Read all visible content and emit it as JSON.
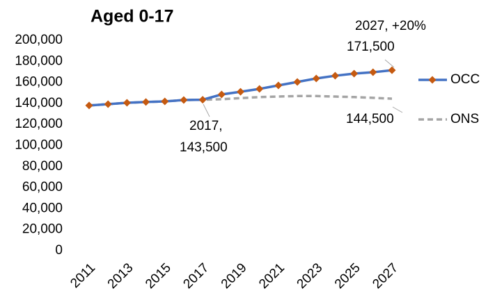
{
  "chart_data": {
    "type": "line",
    "title": "Aged 0-17",
    "x": [
      2011,
      2012,
      2013,
      2014,
      2015,
      2016,
      2017,
      2018,
      2019,
      2020,
      2021,
      2022,
      2023,
      2024,
      2025,
      2026,
      2027
    ],
    "xlim": [
      2011,
      2027
    ],
    "xticks": [
      2011,
      2013,
      2015,
      2017,
      2019,
      2021,
      2023,
      2025,
      2027
    ],
    "ylim": [
      0,
      200000
    ],
    "yticks": [
      0,
      {
        "value": 20000,
        "label": "20,000"
      },
      {
        "value": 40000,
        "label": "40,000"
      },
      {
        "value": 60000,
        "label": "60,000"
      },
      {
        "value": 80000,
        "label": "80,000"
      },
      {
        "value": 100000,
        "label": "100,000"
      },
      {
        "value": 120000,
        "label": "120,000"
      },
      {
        "value": 140000,
        "label": "140,000"
      },
      {
        "value": 160000,
        "label": "160,000"
      },
      {
        "value": 180000,
        "label": "180,000"
      },
      {
        "value": 200000,
        "label": "200,000"
      }
    ],
    "grid": false,
    "legend": "right",
    "series": [
      {
        "name": "ONS",
        "color": "#a5a5a5",
        "dash": true,
        "values": [
          138000,
          139300,
          140600,
          141300,
          141900,
          143200,
          143500,
          144000,
          145000,
          146000,
          146500,
          147000,
          147000,
          146500,
          146000,
          145300,
          144500
        ]
      },
      {
        "name": "OCC",
        "color": "#4472c4",
        "marker_color": "#c55a11",
        "values": [
          138000,
          139300,
          140600,
          141300,
          141900,
          143200,
          143500,
          148500,
          151100,
          153800,
          157100,
          160400,
          163700,
          166300,
          168300,
          169600,
          171500
        ]
      }
    ],
    "annotations": [
      "2027,  +20%",
      "171,500",
      "2017,",
      "143,500",
      "144,500"
    ]
  }
}
